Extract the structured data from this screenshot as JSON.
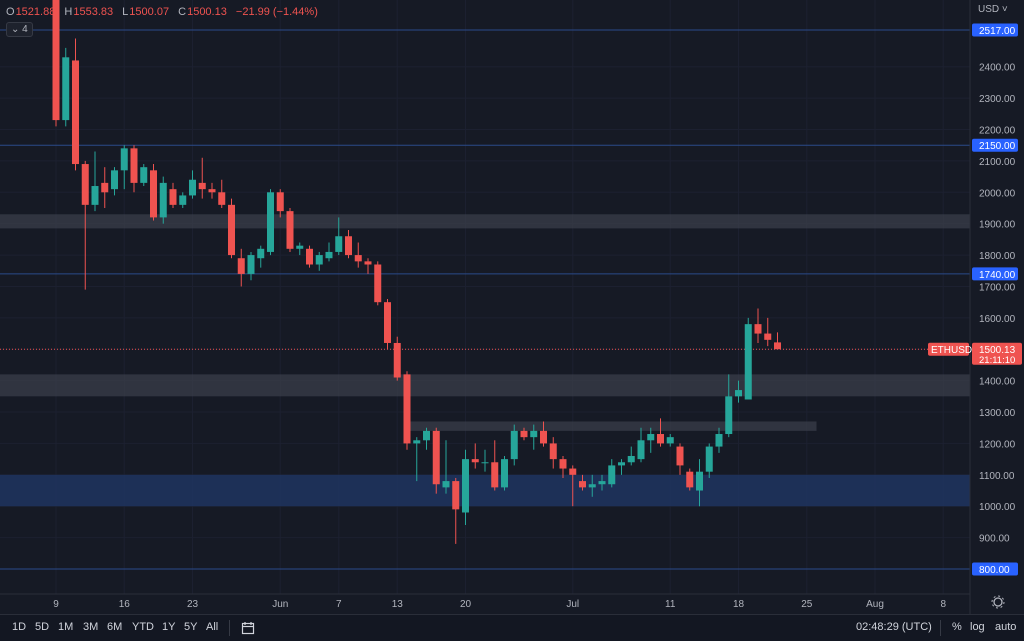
{
  "ohlc": {
    "o_label": "O",
    "o": "1521.88",
    "h_label": "H",
    "h": "1553.83",
    "l_label": "L",
    "l": "1500.07",
    "c_label": "C",
    "c": "1500.13",
    "change": "−21.99 (−1.44%)"
  },
  "indicator_count": "4",
  "currency": "USD",
  "symbol_tag": "ETHUSD",
  "countdown": "21:11:10",
  "colors": {
    "up": "#26a69a",
    "down": "#ef5350",
    "grid": "#1e2230",
    "text": "#b2b5be",
    "zone": "#3a3e49",
    "zone_blue": "#1e3560",
    "level_badge": "#2962ff"
  },
  "time_ranges": [
    "1D",
    "5D",
    "1M",
    "3M",
    "6M",
    "YTD",
    "1Y",
    "5Y",
    "All"
  ],
  "bottom_right": {
    "clock": "02:48:29 (UTC)",
    "percent": "%",
    "log": "log",
    "auto": "auto"
  },
  "chart_data": {
    "type": "candlestick",
    "ylim": [
      720,
      2800
    ],
    "y_ticks": [
      900,
      1000,
      1100,
      1200,
      1300,
      1400,
      1500,
      1600,
      1700,
      1800,
      1900,
      2000,
      2100,
      2200,
      2300,
      2400
    ],
    "y_tick_labels": [
      "900.00",
      "1000.00",
      "1100.00",
      "1200.00",
      "1300.00",
      "1400.00",
      "1500.00",
      "1600.00",
      "1700.00",
      "1800.00",
      "1900.00",
      "2000.00",
      "2100.00",
      "2200.00",
      "2300.00",
      "2400.00"
    ],
    "x_labels": [
      {
        "day": 0,
        "label": "9"
      },
      {
        "day": 7,
        "label": "16"
      },
      {
        "day": 14,
        "label": "23"
      },
      {
        "day": 23,
        "label": "Jun"
      },
      {
        "day": 29,
        "label": "7"
      },
      {
        "day": 35,
        "label": "13"
      },
      {
        "day": 42,
        "label": "20"
      },
      {
        "day": 53,
        "label": "Jul"
      },
      {
        "day": 63,
        "label": "11"
      },
      {
        "day": 70,
        "label": "18"
      },
      {
        "day": 77,
        "label": "25"
      },
      {
        "day": 84,
        "label": "Aug"
      },
      {
        "day": 91,
        "label": "8"
      }
    ],
    "levels": [
      {
        "value": 2517,
        "label": "2517.00"
      },
      {
        "value": 2150,
        "label": "2150.00"
      },
      {
        "value": 1740,
        "label": "1740.00"
      },
      {
        "value": 800,
        "label": "800.00"
      }
    ],
    "last_price": {
      "value": 1500.13,
      "label": "1500.13"
    },
    "zones": [
      {
        "from": 1885,
        "to": 1930,
        "day_start": -6,
        "day_end": 94,
        "kind": "gray"
      },
      {
        "from": 1350,
        "to": 1420,
        "day_start": -6,
        "day_end": 94,
        "kind": "gray"
      },
      {
        "from": 1240,
        "to": 1270,
        "day_start": 36,
        "day_end": 78,
        "kind": "gray"
      },
      {
        "from": 1000,
        "to": 1100,
        "day_start": -6,
        "day_end": 94,
        "kind": "blue"
      }
    ],
    "candles": [
      [
        -1,
        2690,
        2730,
        2620,
        2660
      ],
      [
        0,
        2650,
        2680,
        2210,
        2230
      ],
      [
        1,
        2230,
        2460,
        2210,
        2430
      ],
      [
        2,
        2420,
        2490,
        2070,
        2090
      ],
      [
        3,
        2090,
        2100,
        1690,
        1960
      ],
      [
        4,
        1960,
        2130,
        1940,
        2020
      ],
      [
        5,
        2030,
        2080,
        1950,
        2000
      ],
      [
        6,
        2010,
        2080,
        1990,
        2070
      ],
      [
        7,
        2070,
        2150,
        2010,
        2140
      ],
      [
        8,
        2140,
        2150,
        2000,
        2030
      ],
      [
        9,
        2030,
        2090,
        2020,
        2080
      ],
      [
        10,
        2070,
        2090,
        1910,
        1920
      ],
      [
        11,
        1920,
        2050,
        1900,
        2030
      ],
      [
        12,
        2010,
        2030,
        1950,
        1960
      ],
      [
        13,
        1960,
        2000,
        1950,
        1990
      ],
      [
        14,
        1990,
        2070,
        1980,
        2040
      ],
      [
        15,
        2030,
        2110,
        1980,
        2010
      ],
      [
        16,
        2010,
        2030,
        1980,
        2000
      ],
      [
        17,
        2000,
        2040,
        1950,
        1960
      ],
      [
        18,
        1960,
        1980,
        1790,
        1800
      ],
      [
        19,
        1790,
        1820,
        1700,
        1740
      ],
      [
        20,
        1740,
        1810,
        1720,
        1800
      ],
      [
        21,
        1790,
        1830,
        1760,
        1820
      ],
      [
        22,
        1810,
        2010,
        1800,
        2000
      ],
      [
        23,
        2000,
        2010,
        1920,
        1940
      ],
      [
        24,
        1940,
        1950,
        1810,
        1820
      ],
      [
        25,
        1820,
        1840,
        1800,
        1830
      ],
      [
        26,
        1820,
        1830,
        1760,
        1770
      ],
      [
        27,
        1770,
        1810,
        1750,
        1800
      ],
      [
        28,
        1790,
        1840,
        1780,
        1810
      ],
      [
        29,
        1810,
        1920,
        1800,
        1860
      ],
      [
        30,
        1860,
        1880,
        1790,
        1800
      ],
      [
        31,
        1800,
        1840,
        1760,
        1780
      ],
      [
        32,
        1780,
        1790,
        1740,
        1770
      ],
      [
        33,
        1770,
        1780,
        1640,
        1650
      ],
      [
        34,
        1650,
        1660,
        1500,
        1520
      ],
      [
        35,
        1520,
        1540,
        1400,
        1410
      ],
      [
        36,
        1420,
        1430,
        1180,
        1200
      ],
      [
        37,
        1200,
        1220,
        1080,
        1210
      ],
      [
        38,
        1210,
        1250,
        1180,
        1240
      ],
      [
        39,
        1240,
        1250,
        1040,
        1070
      ],
      [
        40,
        1060,
        1210,
        1040,
        1080
      ],
      [
        41,
        1080,
        1090,
        880,
        990
      ],
      [
        42,
        980,
        1180,
        940,
        1150
      ],
      [
        43,
        1150,
        1200,
        1120,
        1140
      ],
      [
        44,
        1140,
        1180,
        1110,
        1140
      ],
      [
        45,
        1140,
        1210,
        1050,
        1060
      ],
      [
        46,
        1060,
        1160,
        1050,
        1150
      ],
      [
        47,
        1150,
        1260,
        1130,
        1240
      ],
      [
        48,
        1240,
        1250,
        1210,
        1220
      ],
      [
        49,
        1220,
        1260,
        1180,
        1240
      ],
      [
        50,
        1240,
        1270,
        1190,
        1200
      ],
      [
        51,
        1200,
        1220,
        1120,
        1150
      ],
      [
        52,
        1150,
        1160,
        1090,
        1120
      ],
      [
        53,
        1120,
        1130,
        1000,
        1100
      ],
      [
        54,
        1080,
        1100,
        1050,
        1060
      ],
      [
        55,
        1060,
        1100,
        1030,
        1070
      ],
      [
        56,
        1070,
        1100,
        1050,
        1080
      ],
      [
        57,
        1070,
        1150,
        1060,
        1130
      ],
      [
        58,
        1130,
        1150,
        1100,
        1140
      ],
      [
        59,
        1140,
        1190,
        1130,
        1160
      ],
      [
        60,
        1150,
        1250,
        1140,
        1210
      ],
      [
        61,
        1210,
        1250,
        1170,
        1230
      ],
      [
        62,
        1230,
        1280,
        1190,
        1200
      ],
      [
        63,
        1200,
        1230,
        1190,
        1220
      ],
      [
        64,
        1190,
        1200,
        1100,
        1130
      ],
      [
        65,
        1110,
        1120,
        1050,
        1060
      ],
      [
        66,
        1050,
        1150,
        1000,
        1110
      ],
      [
        67,
        1110,
        1200,
        1090,
        1190
      ],
      [
        68,
        1190,
        1250,
        1170,
        1230
      ],
      [
        69,
        1230,
        1420,
        1220,
        1350
      ],
      [
        70,
        1350,
        1400,
        1330,
        1370
      ],
      [
        71,
        1340,
        1600,
        1340,
        1580
      ],
      [
        72,
        1580,
        1630,
        1520,
        1550
      ],
      [
        73,
        1550,
        1600,
        1510,
        1530
      ],
      [
        74,
        1521.88,
        1553.83,
        1500.07,
        1500.13
      ]
    ]
  }
}
